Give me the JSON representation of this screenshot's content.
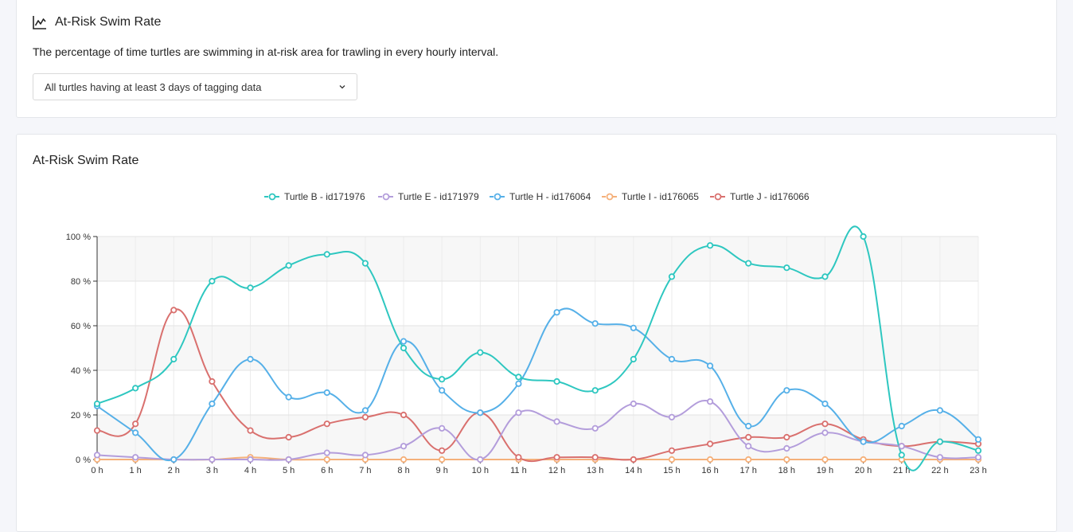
{
  "header": {
    "title": "At-Risk Swim Rate",
    "icon": "line-chart-icon",
    "description": "The percentage of time turtles are swimming in at-risk area for trawling in every hourly interval.",
    "select": {
      "value": "All turtles having at least 3 days of tagging data",
      "icon": "chevron-down-icon"
    }
  },
  "chart_card": {
    "title": "At-Risk Swim Rate"
  },
  "chart_data": {
    "type": "line",
    "title": "At-Risk Swim Rate",
    "xlabel": "",
    "ylabel": "",
    "categories": [
      "0 h",
      "1 h",
      "2 h",
      "3 h",
      "4 h",
      "5 h",
      "6 h",
      "7 h",
      "8 h",
      "9 h",
      "10 h",
      "11 h",
      "12 h",
      "13 h",
      "14 h",
      "15 h",
      "16 h",
      "17 h",
      "18 h",
      "19 h",
      "20 h",
      "21 h",
      "22 h",
      "23 h"
    ],
    "ylim": [
      0,
      100
    ],
    "yticks": [
      0,
      20,
      40,
      60,
      80,
      100
    ],
    "ytick_suffix": " %",
    "grid": true,
    "legend_position": "top-center",
    "series": [
      {
        "name": "Turtle B - id171976",
        "color": "#2ec7c0",
        "values": [
          25,
          32,
          45,
          80,
          77,
          87,
          92,
          88,
          50,
          36,
          48,
          37,
          35,
          31,
          45,
          82,
          96,
          88,
          86,
          82,
          100,
          2,
          8,
          4
        ]
      },
      {
        "name": "Turtle E - id171979",
        "color": "#b39ddb",
        "values": [
          2,
          1,
          0,
          0,
          0,
          0,
          3,
          2,
          6,
          14,
          0,
          21,
          17,
          14,
          25,
          19,
          26,
          6,
          5,
          12,
          8,
          6,
          1,
          1
        ]
      },
      {
        "name": "Turtle H - id176064",
        "color": "#56b0e8",
        "values": [
          24,
          12,
          0,
          25,
          45,
          28,
          30,
          22,
          53,
          31,
          21,
          34,
          66,
          61,
          59,
          45,
          42,
          15,
          31,
          25,
          8,
          15,
          22,
          9
        ]
      },
      {
        "name": "Turtle I - id176065",
        "color": "#f5b07a",
        "values": [
          0,
          0,
          0,
          0,
          1,
          0,
          0,
          0,
          0,
          0,
          0,
          0,
          0,
          0,
          0,
          0,
          0,
          0,
          0,
          0,
          0,
          0,
          0,
          0
        ]
      },
      {
        "name": "Turtle J - id176066",
        "color": "#d9706e",
        "values": [
          13,
          16,
          67,
          35,
          13,
          10,
          16,
          19,
          20,
          4,
          21,
          1,
          1,
          1,
          0,
          4,
          7,
          10,
          10,
          16,
          9,
          6,
          8,
          7
        ]
      }
    ]
  }
}
